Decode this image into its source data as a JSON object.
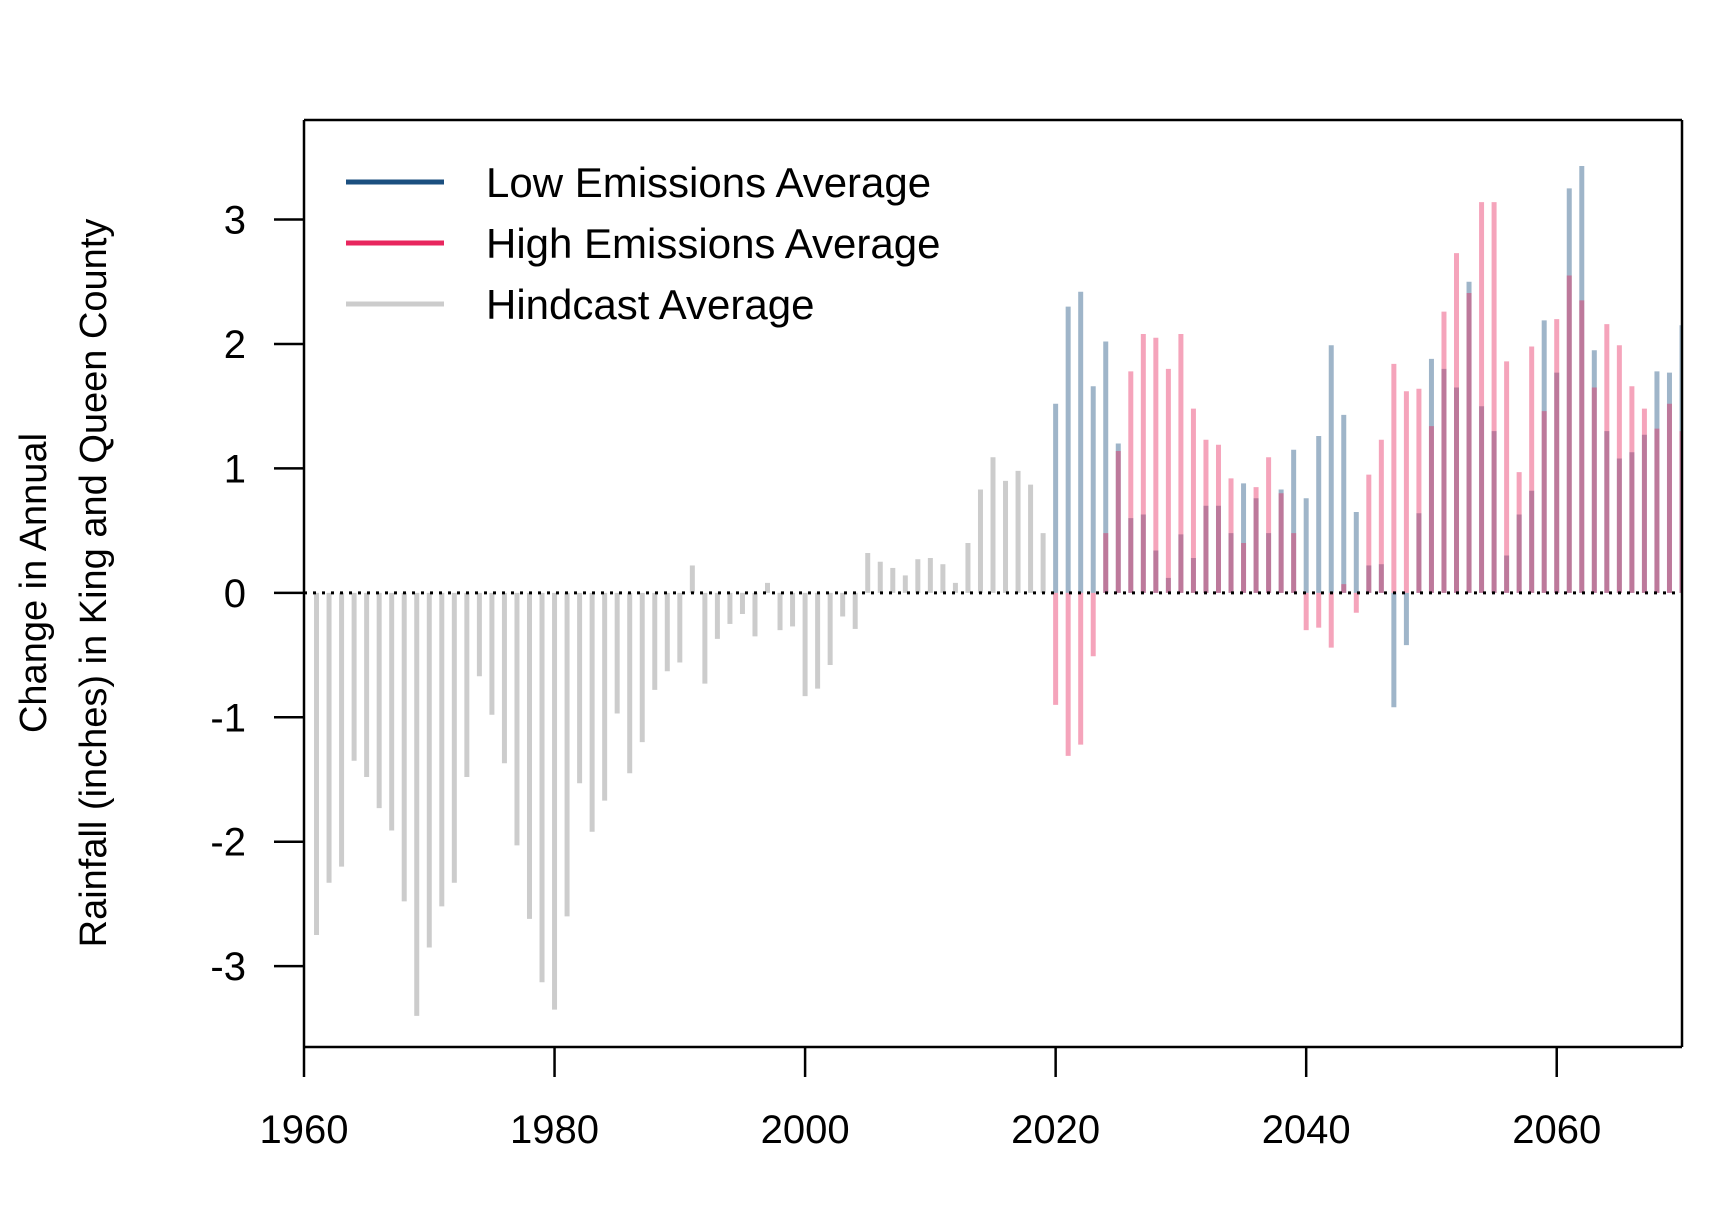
{
  "chart_data": {
    "type": "bar",
    "xlabel": "",
    "ylabel_lines": [
      "Change in Annual",
      "Rainfall (inches) in King and Queen County"
    ],
    "xlim": [
      1960,
      2070
    ],
    "ylim": [
      -3.65,
      3.8
    ],
    "xticks": [
      1960,
      1980,
      2000,
      2020,
      2040,
      2060
    ],
    "yticks": [
      -3,
      -2,
      -1,
      0,
      1,
      2,
      3
    ],
    "grid": false,
    "legend_position": "top-left",
    "legend": [
      {
        "label": "Low Emissions Average",
        "color": "#1b4f7f"
      },
      {
        "label": "High Emissions Average",
        "color": "#e8265e"
      },
      {
        "label": "Hindcast Average",
        "color": "#cccccc"
      }
    ],
    "series": [
      {
        "name": "Hindcast Average",
        "color": "#cccccc",
        "x": [
          1961,
          1962,
          1963,
          1964,
          1965,
          1966,
          1967,
          1968,
          1969,
          1970,
          1971,
          1972,
          1973,
          1974,
          1975,
          1976,
          1977,
          1978,
          1979,
          1980,
          1981,
          1982,
          1983,
          1984,
          1985,
          1986,
          1987,
          1988,
          1989,
          1990,
          1991,
          1992,
          1993,
          1994,
          1995,
          1996,
          1997,
          1998,
          1999,
          2000,
          2001,
          2002,
          2003,
          2004,
          2005,
          2006,
          2007,
          2008,
          2009,
          2010,
          2011,
          2012,
          2013,
          2014,
          2015,
          2016,
          2017,
          2018,
          2019
        ],
        "values": [
          -2.75,
          -2.33,
          -2.2,
          -1.35,
          -1.48,
          -1.73,
          -1.91,
          -2.48,
          -3.4,
          -2.85,
          -2.52,
          -2.33,
          -1.48,
          -0.67,
          -0.98,
          -1.37,
          -2.03,
          -2.62,
          -3.13,
          -3.35,
          -2.6,
          -1.53,
          -1.92,
          -1.67,
          -0.97,
          -1.45,
          -1.2,
          -0.78,
          -0.63,
          -0.56,
          0.22,
          -0.73,
          -0.37,
          -0.25,
          -0.17,
          -0.35,
          0.08,
          -0.3,
          -0.27,
          -0.83,
          -0.77,
          -0.58,
          -0.19,
          -0.29,
          0.32,
          0.25,
          0.2,
          0.14,
          0.27,
          0.28,
          0.23,
          0.08,
          0.4,
          0.83,
          1.09,
          0.9,
          0.98,
          0.87,
          0.48
        ]
      },
      {
        "name": "Low Emissions Average",
        "color": "#1b4f7f",
        "x": [
          2020,
          2021,
          2022,
          2023,
          2024,
          2025,
          2026,
          2027,
          2028,
          2029,
          2030,
          2031,
          2032,
          2033,
          2034,
          2035,
          2036,
          2037,
          2038,
          2039,
          2040,
          2041,
          2042,
          2043,
          2044,
          2045,
          2046,
          2047,
          2048,
          2049,
          2050,
          2051,
          2052,
          2053,
          2054,
          2055,
          2056,
          2057,
          2058,
          2059,
          2060,
          2061,
          2062,
          2063,
          2064,
          2065,
          2066,
          2067,
          2068,
          2069,
          2070
        ],
        "values": [
          1.52,
          2.3,
          2.42,
          1.66,
          2.02,
          1.2,
          0.6,
          0.63,
          0.34,
          0.12,
          0.47,
          0.28,
          0.7,
          0.7,
          0.48,
          0.88,
          0.76,
          0.48,
          0.83,
          1.15,
          0.76,
          1.26,
          1.99,
          1.43,
          0.65,
          0.22,
          0.23,
          -0.92,
          -0.42,
          0.64,
          1.88,
          1.8,
          1.65,
          2.5,
          1.5,
          1.3,
          0.3,
          0.63,
          0.82,
          2.19,
          1.77,
          3.25,
          3.43,
          1.95,
          1.3,
          1.08,
          1.13,
          1.27,
          1.78,
          1.77,
          2.15
        ]
      },
      {
        "name": "High Emissions Average",
        "color": "#e8265e",
        "x": [
          2020,
          2021,
          2022,
          2023,
          2024,
          2025,
          2026,
          2027,
          2028,
          2029,
          2030,
          2031,
          2032,
          2033,
          2034,
          2035,
          2036,
          2037,
          2038,
          2039,
          2040,
          2041,
          2042,
          2043,
          2044,
          2045,
          2046,
          2047,
          2048,
          2049,
          2050,
          2051,
          2052,
          2053,
          2054,
          2055,
          2056,
          2057,
          2058,
          2059,
          2060,
          2061,
          2062,
          2063,
          2064,
          2065,
          2066,
          2067,
          2068,
          2069,
          2070
        ],
        "values": [
          -0.9,
          -1.31,
          -1.22,
          -0.51,
          0.48,
          1.14,
          1.78,
          2.08,
          2.05,
          1.8,
          2.08,
          1.48,
          1.23,
          1.19,
          0.92,
          0.4,
          0.85,
          1.09,
          0.8,
          0.48,
          -0.3,
          -0.28,
          -0.44,
          0.07,
          -0.16,
          0.95,
          1.23,
          1.84,
          1.62,
          1.64,
          1.34,
          2.26,
          2.73,
          2.41,
          3.14,
          3.14,
          1.86,
          0.97,
          1.98,
          1.46,
          2.2,
          2.55,
          2.35,
          1.65,
          2.16,
          1.99,
          1.66,
          1.48,
          1.32,
          1.52,
          1.3
        ]
      }
    ]
  }
}
